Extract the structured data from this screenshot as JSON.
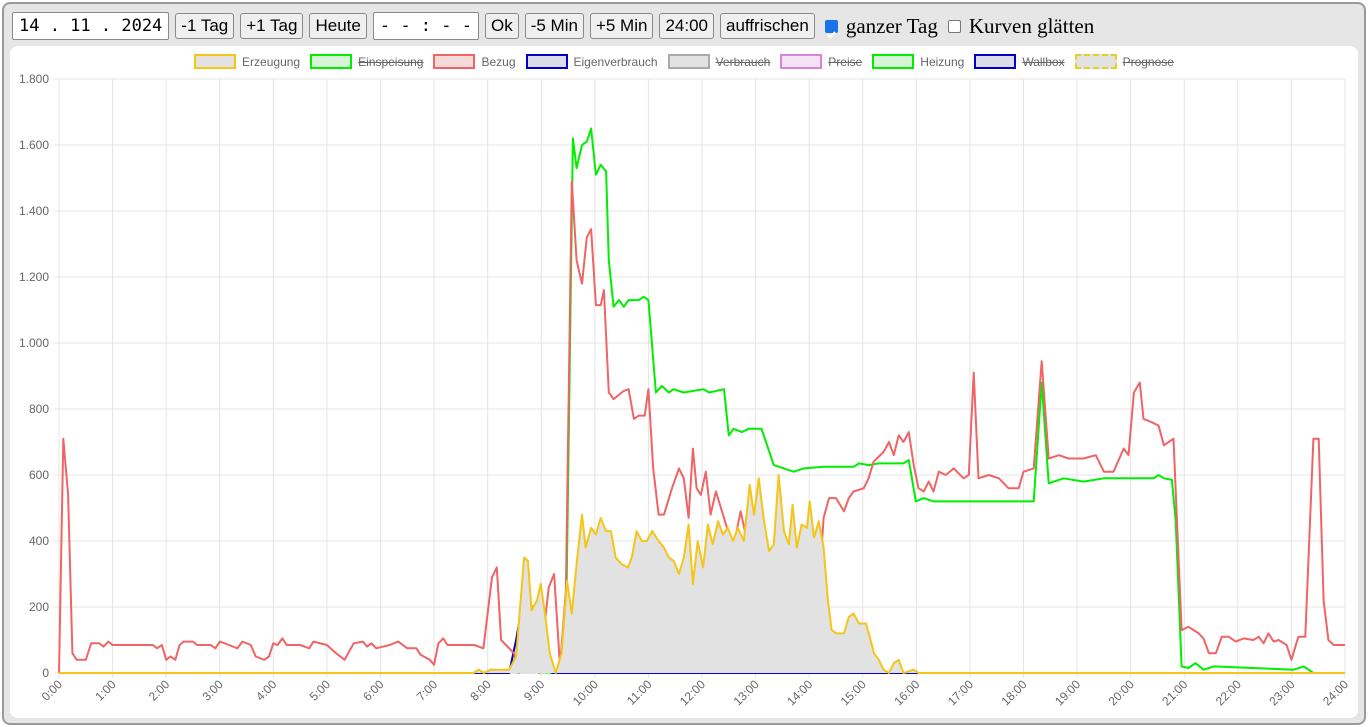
{
  "toolbar": {
    "date": "14 . 11 . 2024",
    "buttons": [
      "-1 Tag",
      "+1 Tag",
      "Heute"
    ],
    "time": "- - : - -",
    "buttons2": [
      "Ok",
      "-5 Min",
      "+5 Min",
      "24:00",
      "auffrischen"
    ],
    "checkboxes": [
      {
        "label": "ganzer Tag",
        "checked": true
      },
      {
        "label": "Kurven glätten",
        "checked": false
      }
    ]
  },
  "chart_data": {
    "type": "line",
    "xlim": [
      0,
      24
    ],
    "ylim": [
      0,
      1800
    ],
    "grid": true,
    "xticks": [
      {
        "value": 0,
        "label": "0:00"
      },
      {
        "value": 1,
        "label": "1:00"
      },
      {
        "value": 2,
        "label": "2:00"
      },
      {
        "value": 3,
        "label": "3:00"
      },
      {
        "value": 4,
        "label": "4:00"
      },
      {
        "value": 5,
        "label": "5:00"
      },
      {
        "value": 6,
        "label": "6:00"
      },
      {
        "value": 7,
        "label": "7:00"
      },
      {
        "value": 8,
        "label": "8:00"
      },
      {
        "value": 9,
        "label": "9:00"
      },
      {
        "value": 10,
        "label": "10:00"
      },
      {
        "value": 11,
        "label": "11:00"
      },
      {
        "value": 12,
        "label": "12:00"
      },
      {
        "value": 13,
        "label": "13:00"
      },
      {
        "value": 14,
        "label": "14:00"
      },
      {
        "value": 15,
        "label": "15:00"
      },
      {
        "value": 16,
        "label": "16:00"
      },
      {
        "value": 17,
        "label": "17:00"
      },
      {
        "value": 18,
        "label": "18:00"
      },
      {
        "value": 19,
        "label": "19:00"
      },
      {
        "value": 20,
        "label": "20:00"
      },
      {
        "value": 21,
        "label": "21:00"
      },
      {
        "value": 22,
        "label": "22:00"
      },
      {
        "value": 23,
        "label": "23:00"
      },
      {
        "value": 24,
        "label": "24:00"
      }
    ],
    "yticks": [
      0,
      200,
      400,
      600,
      800,
      {
        "value": 1000,
        "label": "1.000"
      },
      {
        "value": 1200,
        "label": "1.200"
      },
      {
        "value": 1400,
        "label": "1.400"
      },
      {
        "value": 1600,
        "label": "1.600"
      },
      {
        "value": 1800,
        "label": "1.800"
      }
    ],
    "series": [
      {
        "name": "Erzeugung",
        "color": "#f5c518",
        "fill": "#e2e2e2",
        "area": true,
        "x": [
          0,
          7.74,
          7.83,
          7.93,
          8.06,
          8.4,
          8.53,
          8.68,
          8.75,
          8.82,
          8.92,
          8.99,
          9.07,
          9.16,
          9.27,
          9.38,
          9.48,
          9.57,
          9.66,
          9.76,
          9.83,
          9.93,
          10.02,
          10.11,
          10.21,
          10.3,
          10.39,
          10.5,
          10.62,
          10.69,
          10.78,
          10.88,
          10.97,
          11.07,
          11.19,
          11.29,
          11.38,
          11.47,
          11.57,
          11.66,
          11.75,
          11.83,
          11.92,
          12.02,
          12.11,
          12.2,
          12.3,
          12.39,
          12.48,
          12.58,
          12.67,
          12.78,
          12.89,
          12.97,
          13.06,
          13.15,
          13.25,
          13.34,
          13.43,
          13.53,
          13.62,
          13.69,
          13.77,
          13.86,
          13.96,
          14.01,
          14.09,
          14.18,
          14.27,
          14.35,
          14.42,
          14.51,
          14.65,
          14.74,
          14.83,
          14.93,
          15.06,
          15.13,
          15.21,
          15.3,
          15.39,
          15.49,
          15.58,
          15.67,
          15.76,
          15.95,
          16.04,
          24
        ],
        "values": [
          0,
          0,
          10,
          0,
          10,
          10,
          50,
          350,
          340,
          190,
          220,
          270,
          180,
          60,
          0,
          60,
          280,
          180,
          330,
          480,
          380,
          440,
          420,
          470,
          430,
          430,
          350,
          330,
          320,
          350,
          430,
          400,
          400,
          430,
          400,
          380,
          350,
          340,
          300,
          350,
          450,
          270,
          400,
          320,
          450,
          390,
          460,
          420,
          440,
          400,
          440,
          400,
          570,
          480,
          590,
          470,
          370,
          390,
          600,
          430,
          390,
          510,
          380,
          450,
          440,
          520,
          410,
          460,
          380,
          220,
          130,
          120,
          120,
          170,
          180,
          150,
          150,
          110,
          60,
          40,
          10,
          0,
          30,
          40,
          0,
          10,
          0,
          0
        ]
      },
      {
        "name": "Einspeisung",
        "color": "#00ee00",
        "fill": "#d6f5d6",
        "hidden": true
      },
      {
        "name": "Bezug",
        "color": "#ef6464",
        "fill": "#f5dada",
        "x": [
          0,
          0.08,
          0.17,
          0.25,
          0.33,
          0.5,
          0.6,
          0.75,
          0.83,
          0.92,
          1,
          1.75,
          1.83,
          1.92,
          2,
          2.08,
          2.17,
          2.25,
          2.33,
          2.5,
          2.58,
          2.83,
          2.92,
          3,
          3.17,
          3.33,
          3.42,
          3.58,
          3.67,
          3.83,
          3.92,
          4,
          4.08,
          4.17,
          4.25,
          4.5,
          4.67,
          4.75,
          5,
          5.17,
          5.33,
          5.5,
          5.67,
          5.75,
          5.83,
          5.92,
          6.17,
          6.33,
          6.5,
          6.67,
          6.75,
          6.92,
          7,
          7.08,
          7.17,
          7.25,
          7.75,
          7.92,
          8.08,
          8.17,
          8.25,
          8.49,
          8.58,
          8.81,
          8.96,
          9.14,
          9.24,
          9.35,
          9.46,
          9.57,
          9.66,
          9.76,
          9.85,
          9.93,
          10.02,
          10.11,
          10.17,
          10.26,
          10.35,
          10.54,
          10.63,
          10.73,
          10.82,
          10.93,
          11,
          11.09,
          11.19,
          11.29,
          11.44,
          11.57,
          11.66,
          11.75,
          11.83,
          11.9,
          11.98,
          12.07,
          12.16,
          12.26,
          12.41,
          12.54,
          12.61,
          12.72,
          12.8,
          12.89,
          13,
          13.08,
          13.19,
          13.28,
          13.38,
          13.47,
          13.54,
          13.66,
          13.75,
          13.84,
          13.94,
          14.03,
          14.12,
          14.18,
          14.27,
          14.37,
          14.5,
          14.65,
          14.74,
          14.83,
          15.02,
          15.11,
          15.2,
          15.39,
          15.49,
          15.58,
          15.67,
          15.76,
          15.86,
          15.95,
          16.04,
          16.14,
          16.23,
          16.32,
          16.42,
          16.55,
          16.7,
          16.88,
          16.98,
          17.07,
          17.16,
          17.35,
          17.54,
          17.72,
          17.91,
          18,
          18.19,
          18.34,
          18.47,
          18.66,
          18.84,
          19.12,
          19.35,
          19.5,
          19.68,
          19.87,
          19.96,
          20.06,
          20.17,
          20.24,
          20.39,
          20.52,
          20.62,
          20.71,
          20.8,
          20.95,
          21.08,
          21.27,
          21.36,
          21.46,
          21.59,
          21.7,
          21.83,
          21.96,
          22.11,
          22.29,
          22.39,
          22.48,
          22.57,
          22.67,
          22.76,
          22.91,
          23,
          23.13,
          23.26,
          23.41,
          23.51,
          23.6,
          23.69,
          23.79,
          24
        ],
        "values": [
          0,
          710,
          540,
          60,
          40,
          40,
          90,
          90,
          80,
          95,
          85,
          85,
          75,
          85,
          40,
          50,
          40,
          85,
          95,
          95,
          85,
          85,
          75,
          95,
          85,
          75,
          95,
          85,
          50,
          40,
          50,
          90,
          85,
          105,
          85,
          85,
          75,
          95,
          85,
          60,
          40,
          90,
          95,
          80,
          90,
          75,
          85,
          95,
          75,
          75,
          55,
          40,
          25,
          90,
          105,
          85,
          85,
          75,
          290,
          320,
          100,
          60,
          0,
          50,
          0,
          260,
          300,
          20,
          250,
          1490,
          1250,
          1180,
          1320,
          1345,
          1115,
          1115,
          1160,
          850,
          830,
          855,
          860,
          770,
          780,
          780,
          860,
          620,
          480,
          480,
          560,
          620,
          590,
          470,
          680,
          560,
          540,
          610,
          480,
          550,
          470,
          400,
          400,
          490,
          430,
          200,
          460,
          210,
          300,
          330,
          200,
          290,
          380,
          180,
          360,
          280,
          180,
          300,
          230,
          250,
          470,
          530,
          530,
          490,
          530,
          550,
          560,
          590,
          640,
          670,
          700,
          660,
          720,
          700,
          730,
          630,
          560,
          550,
          580,
          550,
          610,
          600,
          620,
          590,
          600,
          910,
          590,
          600,
          590,
          560,
          560,
          610,
          620,
          945,
          650,
          660,
          650,
          650,
          660,
          610,
          610,
          680,
          660,
          850,
          880,
          770,
          760,
          750,
          690,
          700,
          710,
          130,
          140,
          120,
          105,
          60,
          60,
          110,
          110,
          95,
          105,
          100,
          110,
          90,
          120,
          95,
          100,
          85,
          40,
          110,
          110,
          710,
          710,
          220,
          100,
          85,
          85
        ]
      },
      {
        "name": "Eigenverbrauch",
        "color": "#0000c8",
        "fill": "#dcdce8",
        "area": true,
        "x": [
          0,
          8.4,
          8.53,
          8.68,
          8.77,
          8.86,
          8.99,
          9.09,
          9.2,
          24
        ],
        "values": [
          0,
          0,
          100,
          240,
          230,
          180,
          220,
          110,
          0,
          0
        ]
      },
      {
        "name": "Verbrauch",
        "color": "#aaaaaa",
        "fill": "#e2e2e2",
        "hidden": true
      },
      {
        "name": "Preise",
        "color": "#d884d8",
        "fill": "#f5e2f5",
        "hidden": true
      },
      {
        "name": "Heizung",
        "color": "#00ee00",
        "fill": "#d6f5d6",
        "x": [
          0,
          7.74,
          7.83,
          7.93,
          8.06,
          9.29,
          9.46,
          9.59,
          9.66,
          9.76,
          9.85,
          9.93,
          10.02,
          10.11,
          10.21,
          10.26,
          10.35,
          10.45,
          10.54,
          10.63,
          10.82,
          10.91,
          11,
          11.14,
          11.25,
          11.38,
          11.47,
          11.66,
          12.03,
          12.13,
          12.41,
          12.5,
          12.59,
          12.74,
          12.87,
          13.11,
          13.34,
          13.53,
          13.71,
          13.9,
          14.27,
          14.83,
          14.93,
          15.11,
          15.3,
          15.76,
          15.86,
          15.99,
          16.14,
          16.32,
          18.19,
          18.34,
          18.47,
          18.75,
          19.12,
          19.5,
          20.43,
          20.52,
          20.62,
          20.77,
          20.84,
          20.95,
          21.08,
          21.21,
          21.36,
          21.55,
          23.04,
          23.23,
          23.32,
          23.41,
          24
        ],
        "values": [
          0,
          0,
          10,
          0,
          10,
          0,
          100,
          1620,
          1530,
          1600,
          1610,
          1650,
          1510,
          1540,
          1520,
          1250,
          1110,
          1130,
          1110,
          1130,
          1130,
          1140,
          1130,
          850,
          870,
          850,
          860,
          850,
          860,
          850,
          860,
          720,
          740,
          730,
          740,
          740,
          630,
          620,
          610,
          620,
          625,
          625,
          635,
          630,
          635,
          635,
          645,
          520,
          530,
          520,
          520,
          880,
          575,
          590,
          580,
          590,
          590,
          600,
          590,
          585,
          460,
          20,
          15,
          30,
          10,
          20,
          10,
          20,
          10,
          0,
          0
        ]
      },
      {
        "name": "Wallbox",
        "color": "#0000c8",
        "fill": "#dcdce8",
        "hidden": true
      },
      {
        "name": "Prognose",
        "color": "#e8d020",
        "fill": "#e2e2e2",
        "hidden": true,
        "dashed": true
      }
    ]
  }
}
